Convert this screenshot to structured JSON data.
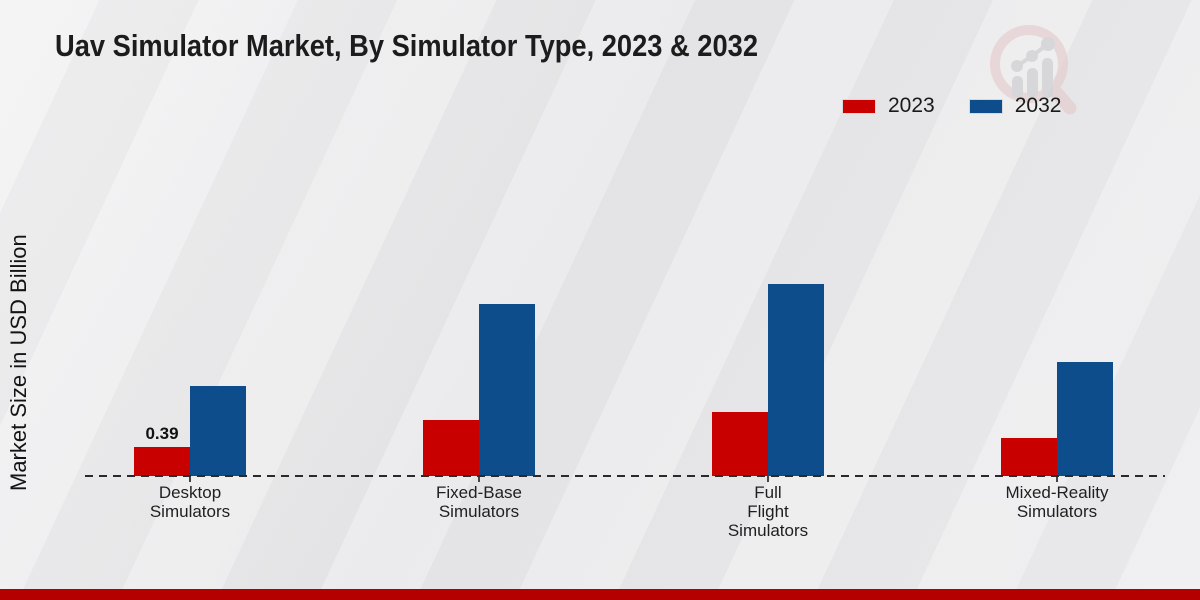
{
  "page": {
    "background_color": "#e9e9eb",
    "footer_color": "#b50000"
  },
  "logo": {
    "name": "market-research-magnifier-watermark",
    "ring_color": "#e3c6c6",
    "bars_color": "#c6c6c8"
  },
  "chart_data": {
    "type": "bar",
    "title": "Uav Simulator Market, By Simulator Type, 2023 & 2032",
    "ylabel": "Market Size in USD Billion",
    "xlabel": "",
    "categories": [
      "Desktop Simulators",
      "Fixed-Base Simulators",
      "Full Flight Simulators",
      "Mixed-Reality Simulators"
    ],
    "category_label_lines": [
      [
        "Desktop",
        "Simulators"
      ],
      [
        "Fixed-Base",
        "Simulators"
      ],
      [
        "Full",
        "Flight",
        "Simulators"
      ],
      [
        "Mixed-Reality",
        "Simulators"
      ]
    ],
    "series": [
      {
        "name": "2023",
        "color": "#c80000",
        "values": [
          0.39,
          0.75,
          0.86,
          0.51
        ]
      },
      {
        "name": "2032",
        "color": "#0d4d8c",
        "values": [
          1.21,
          2.31,
          2.58,
          1.53
        ]
      }
    ],
    "data_labels": [
      {
        "series_index": 0,
        "category_index": 0,
        "text": "0.39"
      }
    ],
    "ylim": [
      0,
      2.9
    ],
    "grid": false,
    "legend_position": "top-right",
    "baseline_style": "dashed",
    "axis_color": "#2a2a2a"
  }
}
